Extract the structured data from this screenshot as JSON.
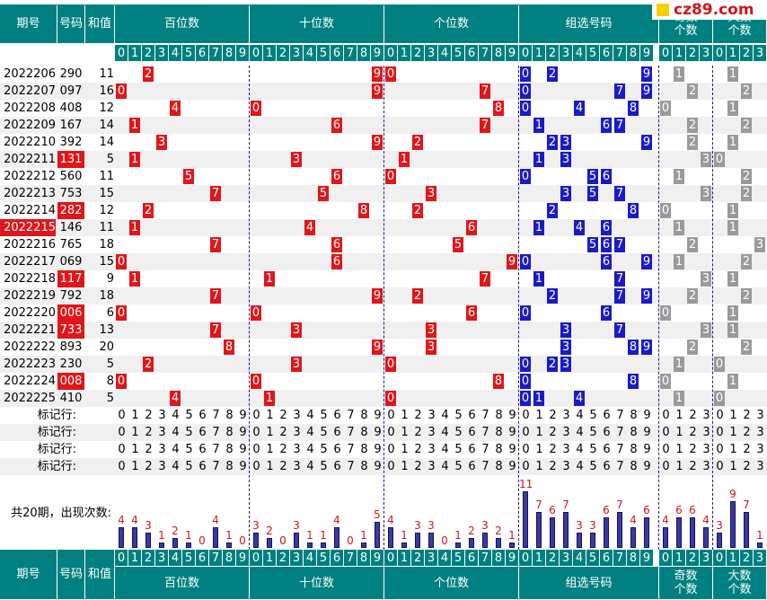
{
  "headers": {
    "issue": "期号",
    "code": "号码",
    "sum": "和值",
    "hundreds": "百位数",
    "tens": "十位数",
    "units": "个位数",
    "group": "组选号码",
    "odd": "奇数\n个数",
    "big": "大数\n个数",
    "odd_top": "奇数\n个数",
    "big_top": "大数\n个数"
  },
  "digits": [
    "0",
    "1",
    "2",
    "3",
    "4",
    "5",
    "6",
    "7",
    "8",
    "9"
  ],
  "small": [
    "0",
    "1",
    "2",
    "3"
  ],
  "watermark": "cz89.com",
  "rows": [
    {
      "issue": "2022206",
      "code": "290",
      "sum": "11",
      "odd": "1",
      "big": "1"
    },
    {
      "issue": "2022207",
      "code": "097",
      "sum": "16",
      "odd": "2",
      "big": "2"
    },
    {
      "issue": "2022208",
      "code": "408",
      "sum": "12",
      "odd": "0",
      "big": "1"
    },
    {
      "issue": "2022209",
      "code": "167",
      "sum": "14",
      "odd": "2",
      "big": "2"
    },
    {
      "issue": "2022210",
      "code": "392",
      "sum": "14",
      "odd": "2",
      "big": "1"
    },
    {
      "issue": "2022211",
      "code": "131",
      "sum": "5",
      "odd": "3",
      "big": "0"
    },
    {
      "issue": "2022212",
      "code": "560",
      "sum": "11",
      "odd": "1",
      "big": "2"
    },
    {
      "issue": "2022213",
      "code": "753",
      "sum": "15",
      "odd": "3",
      "big": "2"
    },
    {
      "issue": "2022214",
      "code": "282",
      "sum": "12",
      "odd": "0",
      "big": "1"
    },
    {
      "issue": "2022215",
      "code": "146",
      "sum": "11",
      "odd": "1",
      "big": "1"
    },
    {
      "issue": "2022216",
      "code": "765",
      "sum": "18",
      "odd": "2",
      "big": "3"
    },
    {
      "issue": "2022217",
      "code": "069",
      "sum": "15",
      "odd": "1",
      "big": "2"
    },
    {
      "issue": "2022218",
      "code": "117",
      "sum": "9",
      "odd": "3",
      "big": "1"
    },
    {
      "issue": "2022219",
      "code": "792",
      "sum": "18",
      "odd": "2",
      "big": "2"
    },
    {
      "issue": "2022220",
      "code": "006",
      "sum": "6",
      "odd": "0",
      "big": "1"
    },
    {
      "issue": "2022221",
      "code": "733",
      "sum": "13",
      "odd": "3",
      "big": "1"
    },
    {
      "issue": "2022222",
      "code": "893",
      "sum": "20",
      "odd": "2",
      "big": "2"
    },
    {
      "issue": "2022223",
      "code": "230",
      "sum": "5",
      "odd": "1",
      "big": "0"
    },
    {
      "issue": "2022224",
      "code": "008",
      "sum": "8",
      "odd": "0",
      "big": "1"
    },
    {
      "issue": "2022225",
      "code": "410",
      "sum": "5",
      "odd": "1",
      "big": "0"
    }
  ],
  "mark_label": "标记行:",
  "count_label": "共20期，出现次数:",
  "counts": {
    "hundreds": [
      4,
      4,
      3,
      1,
      2,
      1,
      0,
      4,
      1,
      0
    ],
    "tens": [
      3,
      2,
      0,
      3,
      1,
      1,
      4,
      0,
      1,
      5
    ],
    "units": [
      4,
      1,
      3,
      3,
      0,
      1,
      2,
      3,
      2,
      1
    ],
    "group": [
      11,
      7,
      6,
      7,
      3,
      3,
      6,
      7,
      4,
      6
    ],
    "odd": [
      4,
      6,
      6,
      4
    ],
    "big": [
      3,
      9,
      7,
      1
    ]
  }
}
